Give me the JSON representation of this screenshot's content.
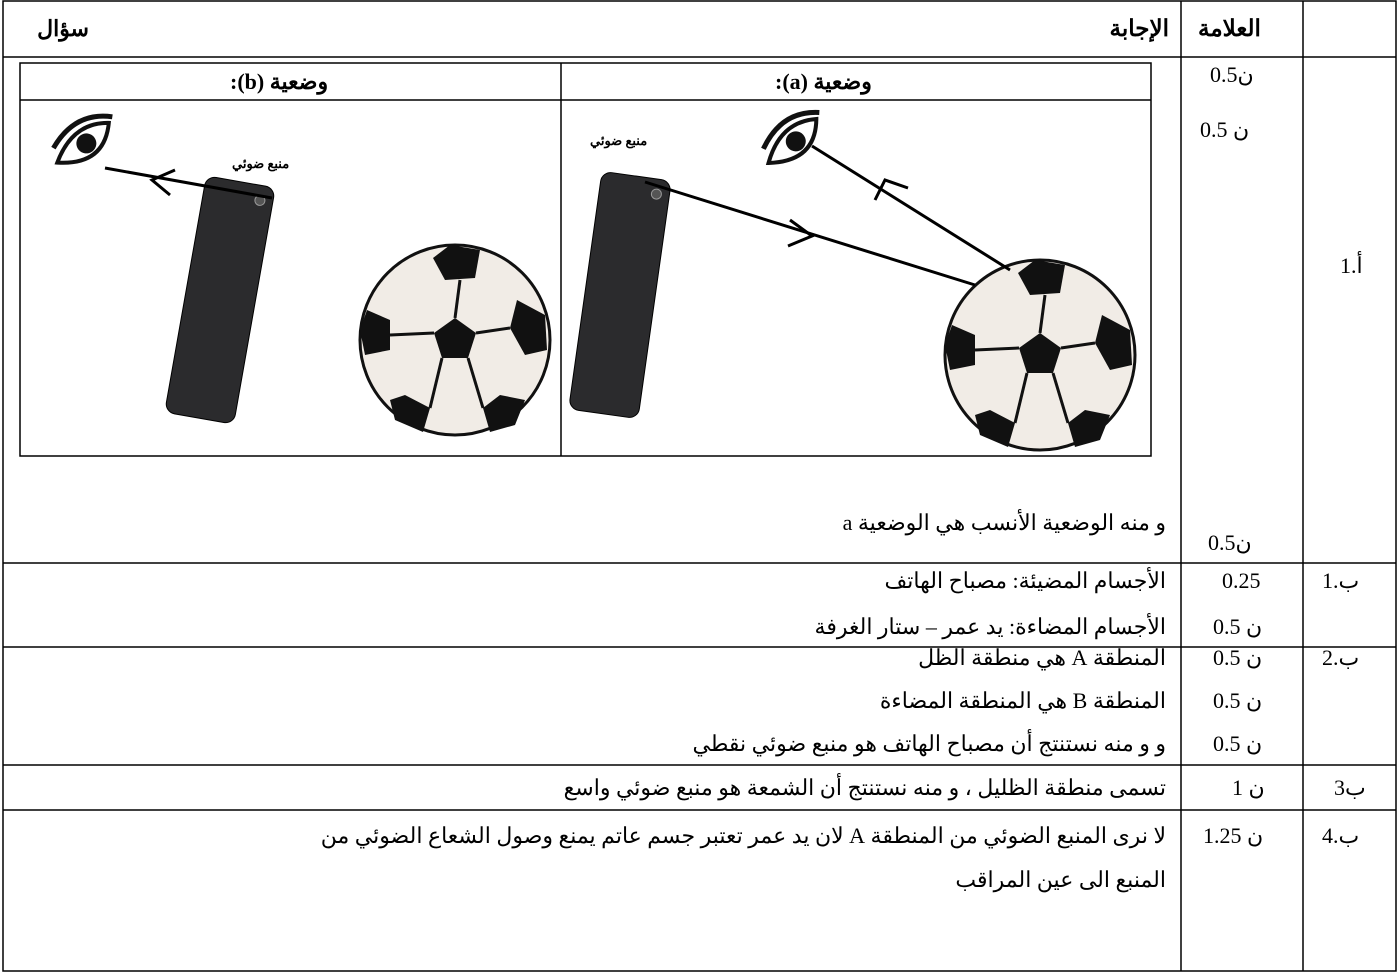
{
  "table": {
    "header": {
      "question": "سؤال",
      "marks": "العلامة",
      "answer": "الإجابة"
    },
    "rows": [
      {
        "question": "1.أ",
        "marks": [
          "0.5ن",
          "0.5 ن",
          "0.5ن"
        ],
        "situations": [
          {
            "title": "وضعية (a):",
            "label": "منبع ضوئي"
          },
          {
            "title": "وضعية (b):",
            "label": "منبع ضوئي"
          }
        ],
        "answer": [
          "و منه الوضعية الأنسب هي الوضعية a"
        ]
      },
      {
        "question": "ب.1",
        "marks": [
          "0.25",
          "0.5 ن"
        ],
        "answer": [
          "الأجسام المضيئة: مصباح الهاتف",
          "الأجسام المضاءة: يد عمر – ستار الغرفة"
        ]
      },
      {
        "question": "ب.2",
        "marks": [
          "0.5 ن",
          "0.5 ن",
          "0.5 ن"
        ],
        "answer": [
          "المنطقة A هي منطقة الظل",
          "المنطقة B هي المنطقة المضاءة",
          "و و منه نستنتج أن مصباح الهاتف هو منبع ضوئي نقطي"
        ]
      },
      {
        "question": "3ب",
        "marks": [
          "1 ن"
        ],
        "answer": [
          "تسمى منطقة الظليل ، و منه نستنتج أن الشمعة هو منبع ضوئي واسع"
        ]
      },
      {
        "question": "ب.4",
        "marks": [
          "1.25 ن"
        ],
        "answer": [
          "لا نرى المنبع الضوئي من المنطقة A لان يد عمر تعتبر جسم عاتم يمنع وصول الشعاع الضوئي من",
          "المنبع الى عين المراقب"
        ]
      }
    ]
  }
}
